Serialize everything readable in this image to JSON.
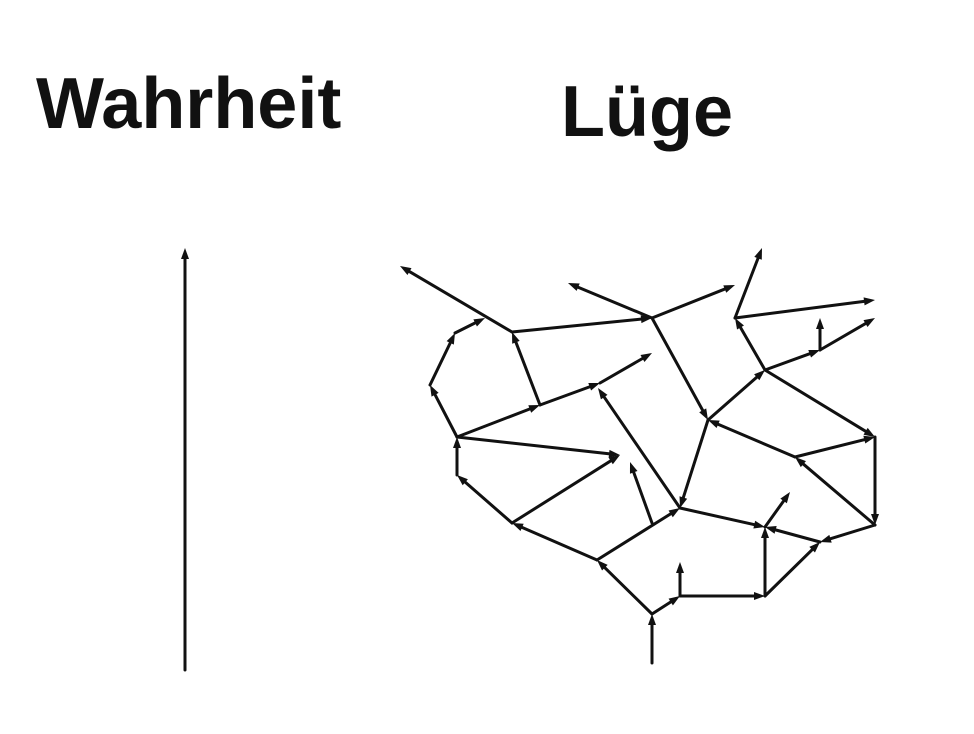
{
  "labels": {
    "left": "Wahrheit",
    "right": "Lüge"
  },
  "colors": {
    "line": "#111111",
    "background": "#ffffff"
  }
}
